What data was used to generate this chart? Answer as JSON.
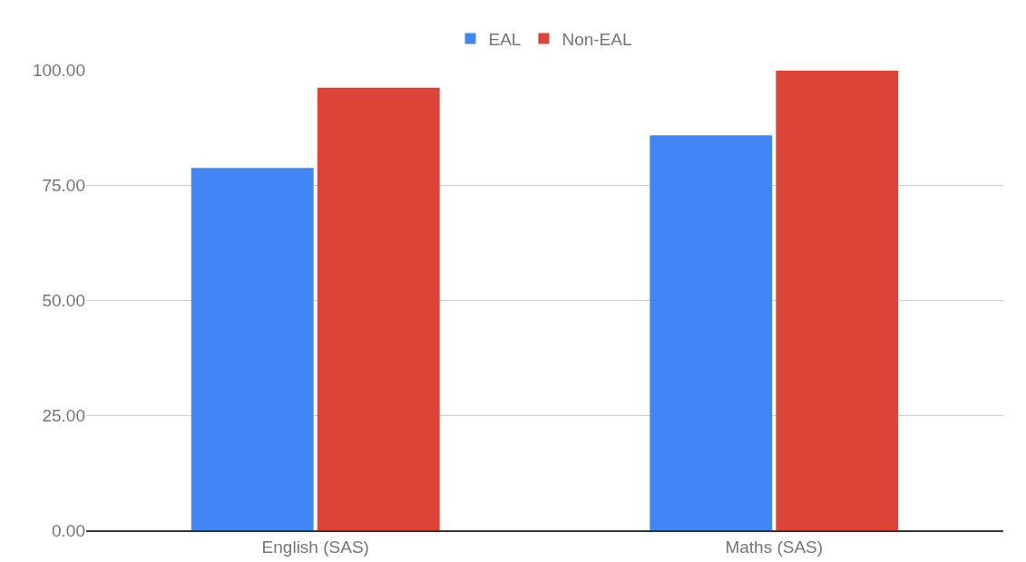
{
  "chart_data": {
    "type": "bar",
    "categories": [
      "English (SAS)",
      "Maths (SAS)"
    ],
    "series": [
      {
        "name": "EAL",
        "color": "#4285f4",
        "values": [
          78.7,
          85.8
        ]
      },
      {
        "name": "Non-EAL",
        "color": "#db4437",
        "values": [
          96.1,
          99.8
        ]
      }
    ],
    "ylim": [
      0,
      100
    ],
    "yticks": [
      {
        "value": 0,
        "label": "0.00"
      },
      {
        "value": 25,
        "label": "25.00"
      },
      {
        "value": 50,
        "label": "50.00"
      },
      {
        "value": 75,
        "label": "75.00"
      },
      {
        "value": 100,
        "label": "100.00"
      }
    ],
    "grid": "y",
    "legend": "top"
  }
}
